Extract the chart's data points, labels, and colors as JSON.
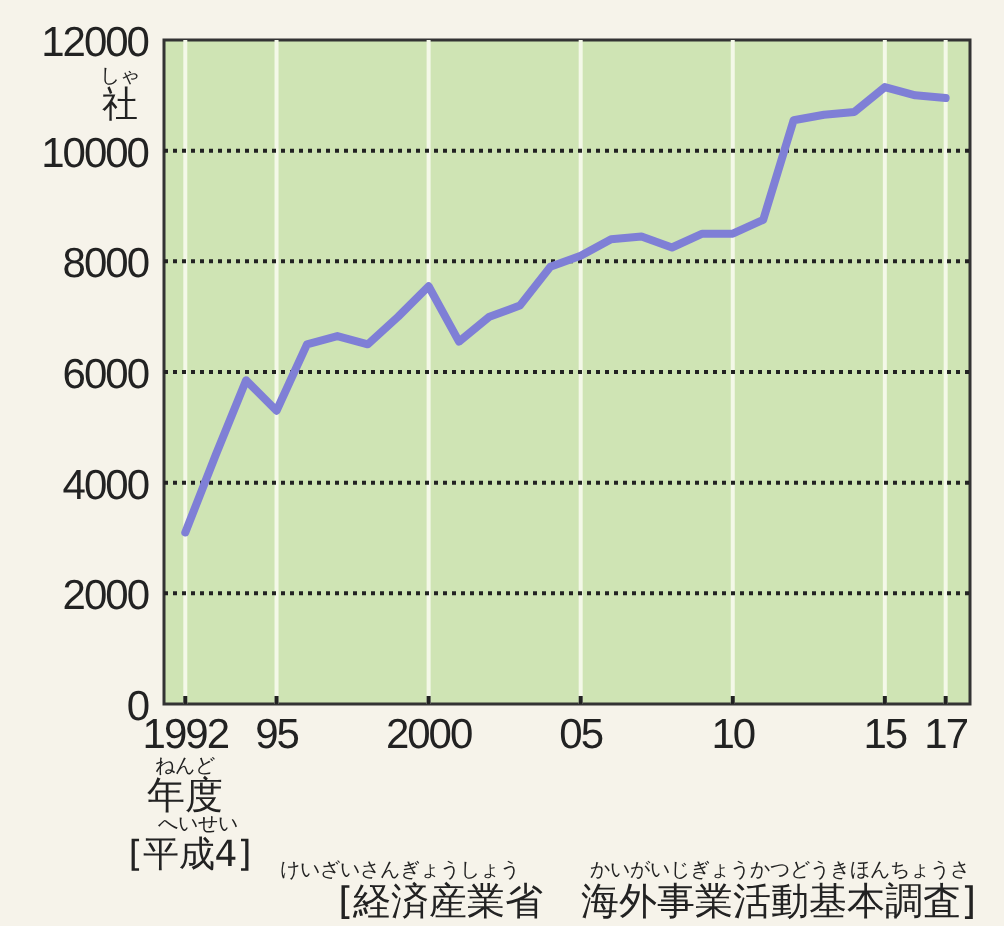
{
  "chart_data": {
    "type": "line",
    "x": [
      1992,
      1993,
      1994,
      1995,
      1996,
      1997,
      1998,
      1999,
      2000,
      2001,
      2002,
      2003,
      2004,
      2005,
      2006,
      2007,
      2008,
      2009,
      2010,
      2011,
      2012,
      2013,
      2014,
      2015,
      2016,
      2017
    ],
    "values": [
      3100,
      4500,
      5850,
      5300,
      6500,
      6650,
      6500,
      7000,
      7550,
      6550,
      7000,
      7200,
      7900,
      8100,
      8400,
      8450,
      8250,
      8500,
      8500,
      8750,
      10550,
      10650,
      10700,
      11150,
      11000,
      10950
    ],
    "color": "#7f7fd6",
    "xlabel": "年度",
    "ylabel": "社",
    "xlim": [
      1991.3,
      2017.8
    ],
    "ylim": [
      0,
      12000
    ],
    "xticks": [
      {
        "value": 1992,
        "label": "1992"
      },
      {
        "value": 1995,
        "label": "95"
      },
      {
        "value": 2000,
        "label": "2000"
      },
      {
        "value": 2005,
        "label": "05"
      },
      {
        "value": 2010,
        "label": "10"
      },
      {
        "value": 2015,
        "label": "15"
      },
      {
        "value": 2017,
        "label": "17"
      }
    ],
    "yticks": [
      0,
      2000,
      4000,
      6000,
      8000,
      10000,
      12000
    ],
    "grid": true,
    "marker": "none",
    "line_style": "solid",
    "annotations": [
      "[平成4]",
      "[経済産業省　海外事業活動基本調査]",
      "しゃ",
      "ねんど",
      "へいせい",
      "けいざいさんぎょうしょう",
      "かいがいじぎょうかつどうきほんちょうさ"
    ]
  }
}
